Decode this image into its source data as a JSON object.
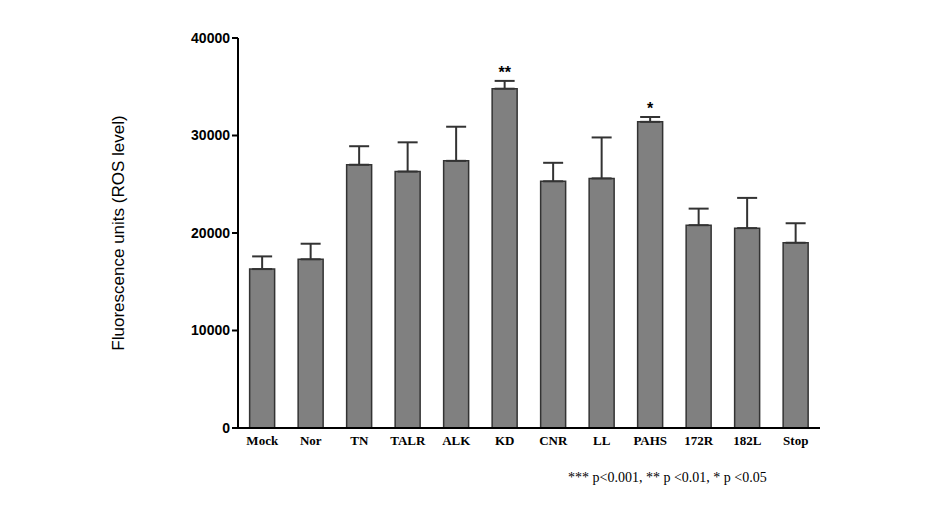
{
  "chart_data": {
    "type": "bar",
    "categories": [
      "Mock",
      "Nor",
      "TN",
      "TALR",
      "ALK",
      "KD",
      "CNR",
      "LL",
      "PAHS",
      "172R",
      "182L",
      "Stop"
    ],
    "values": [
      16300,
      17300,
      27000,
      26300,
      27400,
      34800,
      25300,
      25600,
      31400,
      20800,
      20500,
      19000
    ],
    "errors": [
      1300,
      1600,
      1900,
      3000,
      3500,
      800,
      1900,
      4200,
      500,
      1700,
      3100,
      2000
    ],
    "annotations": [
      null,
      null,
      null,
      null,
      null,
      "**",
      null,
      null,
      "*",
      null,
      null,
      null
    ],
    "y_label": "Fluorescence units (ROS level)",
    "footnote": "*** p<0.001, ** p <0.01, * p <0.05",
    "ylim": [
      0,
      40000
    ],
    "yticks": [
      0,
      10000,
      20000,
      30000,
      40000
    ],
    "color": "#808080",
    "grid": false
  }
}
